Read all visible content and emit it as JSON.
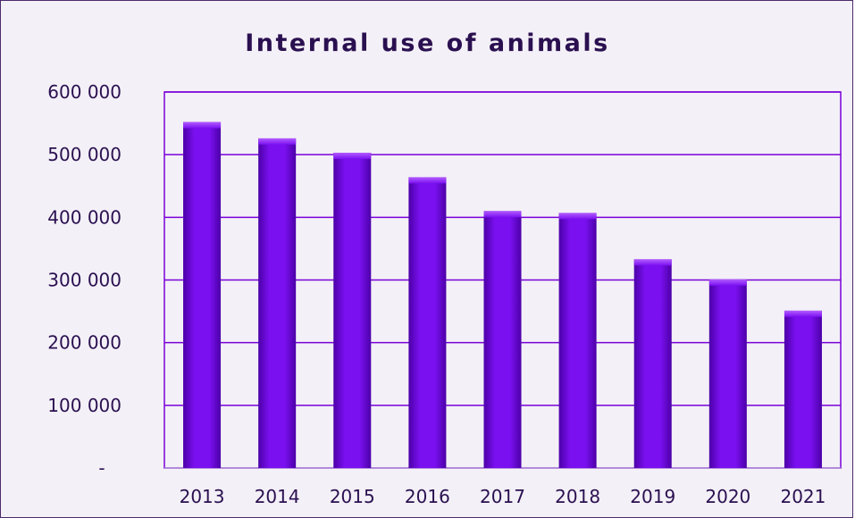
{
  "chart_data": {
    "type": "bar",
    "title": "Internal use of animals",
    "categories": [
      "2013",
      "2014",
      "2015",
      "2016",
      "2017",
      "2018",
      "2019",
      "2020",
      "2021"
    ],
    "values": [
      552000,
      526000,
      503000,
      464000,
      410000,
      407000,
      333000,
      301000,
      251000
    ],
    "ylim": [
      0,
      600000
    ],
    "yticks": [
      0,
      100000,
      200000,
      300000,
      400000,
      500000,
      600000
    ],
    "ytick_labels": [
      "-",
      "100 000",
      "200 000",
      "300 000",
      "400 000",
      "500 000",
      "600 000"
    ],
    "grid": true,
    "legend": "none",
    "xlabel": "",
    "ylabel": ""
  },
  "colors": {
    "bar": "#7a10f0",
    "bar_light": "#b35cff",
    "bar_dark": "#4c00a8",
    "grid": "#7a00d8",
    "text": "#2a1050",
    "background": "#f3f0f7"
  }
}
